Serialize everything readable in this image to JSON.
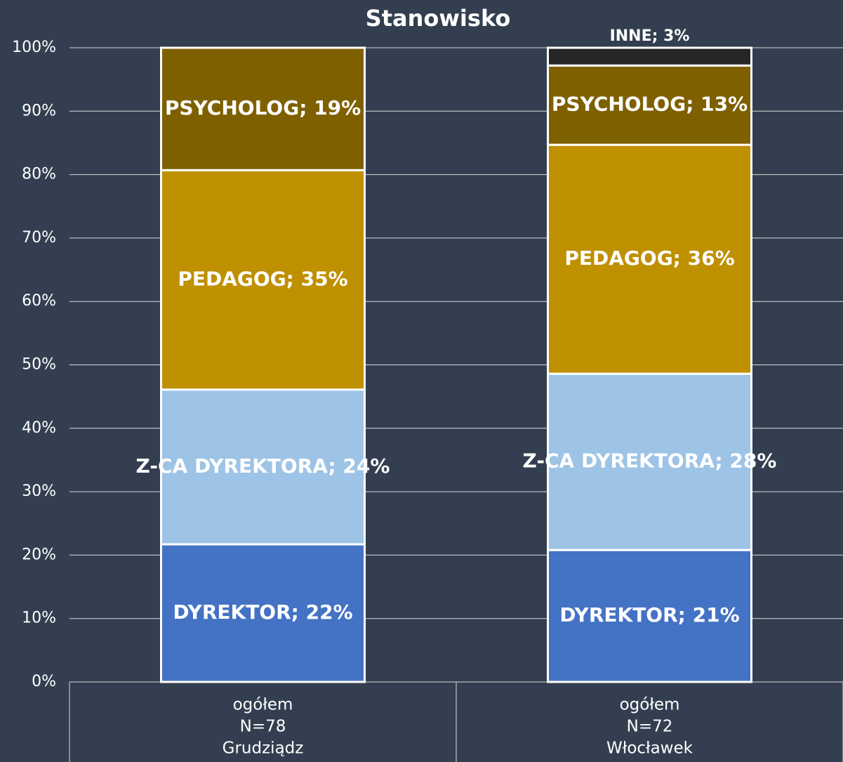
{
  "chart_data": {
    "type": "stacked_bar",
    "title": "Stanowisko",
    "categories": [
      [
        "ogółem",
        "N=78",
        "Grudziądz"
      ],
      [
        "ogółem",
        "N=72",
        "Włocławek"
      ]
    ],
    "series": [
      {
        "name": "DYREKTOR",
        "color": "#4472c4",
        "values": [
          21.7,
          20.8
        ],
        "value_labels": [
          "DYREKTOR; 22%",
          "DYREKTOR; 21%"
        ]
      },
      {
        "name": "Z-CA DYREKTORA",
        "color": "#9dc3e6",
        "values": [
          24.4,
          27.8
        ],
        "value_labels": [
          "Z-CA DYREKTORA; 24%",
          "Z-CA DYREKTORA; 28%"
        ]
      },
      {
        "name": "PEDAGOG",
        "color": "#bf9000",
        "values": [
          34.6,
          36.1
        ],
        "value_labels": [
          "PEDAGOG; 35%",
          "PEDAGOG; 36%"
        ]
      },
      {
        "name": "PSYCHOLOG",
        "color": "#7f6000",
        "values": [
          19.3,
          12.5
        ],
        "value_labels": [
          "PSYCHOLOG; 19%",
          "PSYCHOLOG; 13%"
        ]
      },
      {
        "name": "INNE",
        "color": "#262626",
        "values": [
          null,
          2.8
        ],
        "value_labels": [
          null,
          "INNE; 3%"
        ]
      }
    ],
    "ylim": [
      0,
      100
    ],
    "yticks": [
      {
        "value": 0,
        "label": "0%"
      },
      {
        "value": 10,
        "label": "10%"
      },
      {
        "value": 20,
        "label": "20%"
      },
      {
        "value": 30,
        "label": "30%"
      },
      {
        "value": 40,
        "label": "40%"
      },
      {
        "value": 50,
        "label": "50%"
      },
      {
        "value": 60,
        "label": "60%"
      },
      {
        "value": 70,
        "label": "70%"
      },
      {
        "value": 80,
        "label": "80%"
      },
      {
        "value": 90,
        "label": "90%"
      },
      {
        "value": 100,
        "label": "100%"
      }
    ],
    "grid": true
  }
}
